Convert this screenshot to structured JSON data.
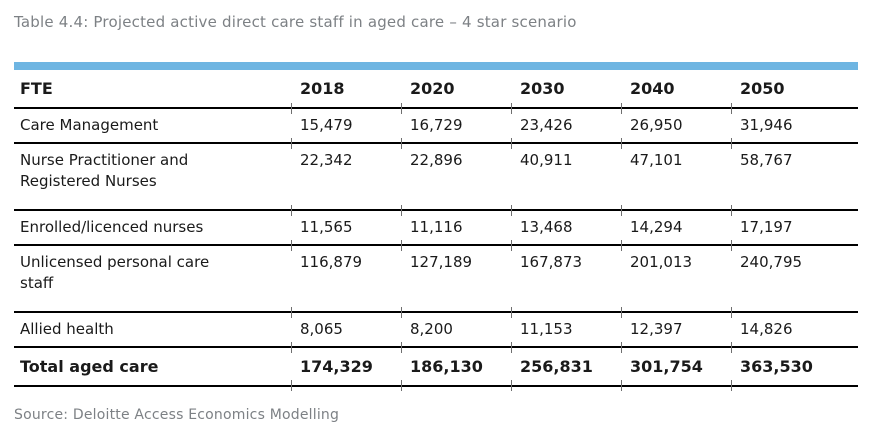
{
  "title": "Table 4.4: Projected active direct care staff in aged care – 4 star scenario",
  "source": "Source: Deloitte Access Economics Modelling",
  "colors": {
    "accent_bar": "#6eb5e2",
    "caption_text": "#7d8185",
    "source_text": "#7d8185",
    "rule": "#000000",
    "body_text": "#1a1a1a"
  },
  "table": {
    "columns": [
      "FTE",
      "2018",
      "2020",
      "2030",
      "2040",
      "2050"
    ],
    "rows": [
      {
        "label": "Care Management",
        "values": [
          "15,479",
          "16,729",
          "23,426",
          "26,950",
          "31,946"
        ]
      },
      {
        "label": "Nurse Practitioner and Registered Nurses",
        "values": [
          "22,342",
          "22,896",
          "40,911",
          "47,101",
          "58,767"
        ]
      },
      {
        "label": "Enrolled/licenced nurses",
        "values": [
          "11,565",
          "11,116",
          "13,468",
          "14,294",
          "17,197"
        ]
      },
      {
        "label": "Unlicensed personal care staff",
        "values": [
          "116,879",
          "127,189",
          "167,873",
          "201,013",
          "240,795"
        ]
      },
      {
        "label": "Allied health",
        "values": [
          "8,065",
          "8,200",
          "11,153",
          "12,397",
          "14,826"
        ]
      },
      {
        "label": "Total aged care",
        "values": [
          "174,329",
          "186,130",
          "256,831",
          "301,754",
          "363,530"
        ]
      }
    ]
  }
}
